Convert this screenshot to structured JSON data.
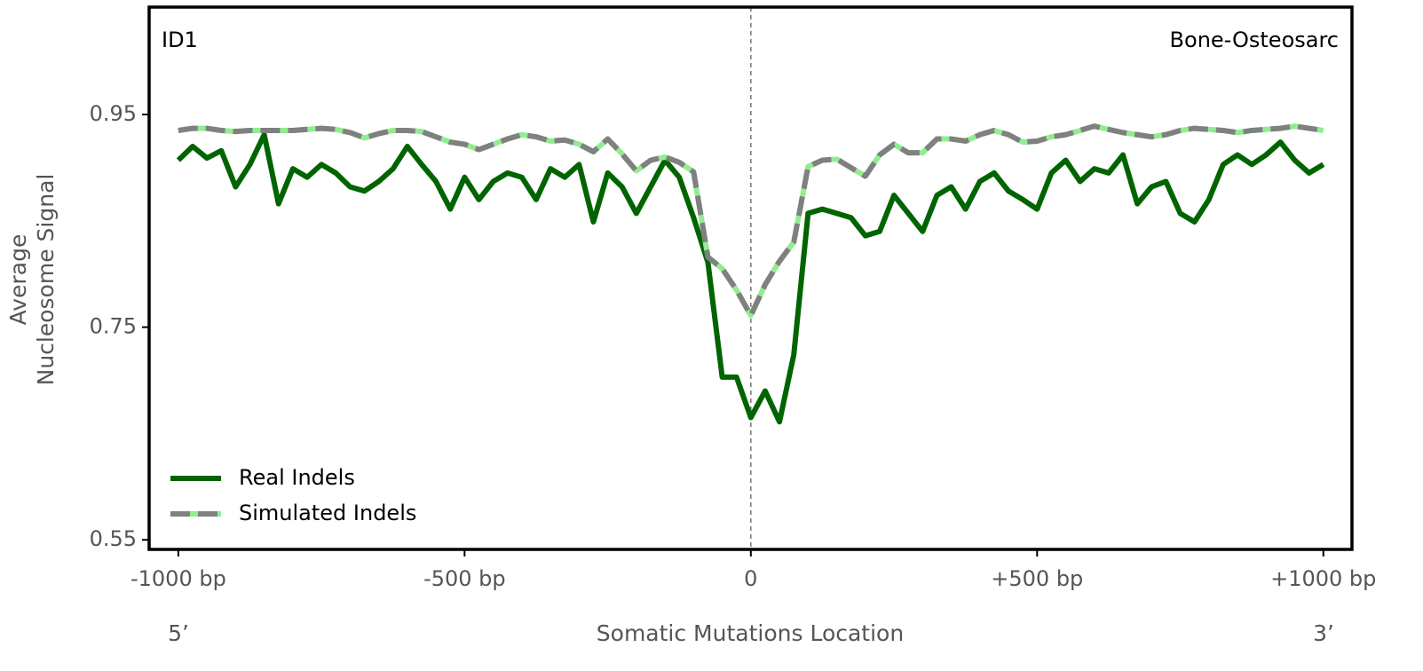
{
  "chart_data": {
    "type": "line",
    "annotations": {
      "left": "ID1",
      "right": "Bone-Osteosarc"
    },
    "xlabel": "Somatic Mutations Location",
    "xlabel_ends": [
      "5’",
      "3’"
    ],
    "ylabel": [
      "Average",
      "Nucleosome Signal"
    ],
    "xlim": [
      -1051,
      1050
    ],
    "ylim": [
      0.541,
      1.051
    ],
    "xticks": [
      {
        "value": -1000,
        "label": "-1000 bp"
      },
      {
        "value": -500,
        "label": "-500 bp"
      },
      0,
      {
        "value": 500,
        "label": "+500 bp"
      },
      {
        "value": 1000,
        "label": "+1000 bp"
      }
    ],
    "yticks": [
      0.55,
      0.75,
      0.95
    ],
    "grid": false,
    "vline": 0,
    "legend": "lower left",
    "x": [
      -1000,
      -975,
      -950,
      -925,
      -900,
      -875,
      -850,
      -825,
      -800,
      -775,
      -750,
      -725,
      -700,
      -675,
      -650,
      -625,
      -600,
      -575,
      -550,
      -525,
      -500,
      -475,
      -450,
      -425,
      -400,
      -375,
      -350,
      -325,
      -300,
      -275,
      -250,
      -225,
      -200,
      -175,
      -150,
      -125,
      -100,
      -75,
      -50,
      -25,
      0,
      25,
      50,
      75,
      100,
      125,
      150,
      175,
      200,
      225,
      250,
      275,
      300,
      325,
      350,
      375,
      400,
      425,
      450,
      475,
      500,
      525,
      550,
      575,
      600,
      625,
      650,
      675,
      700,
      725,
      750,
      775,
      800,
      825,
      850,
      875,
      900,
      925,
      950,
      975,
      1000
    ],
    "series": [
      {
        "name": "Real Indels",
        "color": "#006400",
        "dashed": false,
        "values": [
          0.907,
          0.92,
          0.909,
          0.916,
          0.882,
          0.903,
          0.931,
          0.866,
          0.899,
          0.891,
          0.903,
          0.895,
          0.882,
          0.878,
          0.887,
          0.899,
          0.92,
          0.903,
          0.887,
          0.861,
          0.891,
          0.87,
          0.887,
          0.895,
          0.891,
          0.87,
          0.899,
          0.891,
          0.903,
          0.849,
          0.895,
          0.882,
          0.857,
          0.882,
          0.907,
          0.891,
          0.853,
          0.811,
          0.703,
          0.703,
          0.665,
          0.69,
          0.661,
          0.724,
          0.857,
          0.861,
          0.857,
          0.853,
          0.836,
          0.84,
          0.874,
          0.857,
          0.84,
          0.874,
          0.882,
          0.861,
          0.887,
          0.895,
          0.878,
          0.87,
          0.861,
          0.895,
          0.907,
          0.887,
          0.899,
          0.895,
          0.912,
          0.866,
          0.882,
          0.887,
          0.857,
          0.849,
          0.87,
          0.903,
          0.912,
          0.903,
          0.912,
          0.924,
          0.907,
          0.895,
          0.903
        ]
      },
      {
        "name": "Simulated Indels",
        "color": "#808080",
        "dashed": true,
        "background_color": "#90ee90",
        "values": [
          0.935,
          0.937,
          0.937,
          0.935,
          0.934,
          0.935,
          0.935,
          0.935,
          0.935,
          0.936,
          0.937,
          0.936,
          0.933,
          0.928,
          0.932,
          0.935,
          0.935,
          0.934,
          0.929,
          0.924,
          0.922,
          0.917,
          0.922,
          0.927,
          0.931,
          0.929,
          0.925,
          0.926,
          0.922,
          0.915,
          0.927,
          0.913,
          0.897,
          0.907,
          0.91,
          0.905,
          0.896,
          0.816,
          0.805,
          0.785,
          0.761,
          0.79,
          0.812,
          0.83,
          0.901,
          0.907,
          0.908,
          0.9,
          0.892,
          0.912,
          0.922,
          0.914,
          0.914,
          0.927,
          0.927,
          0.925,
          0.931,
          0.935,
          0.931,
          0.924,
          0.925,
          0.929,
          0.931,
          0.935,
          0.939,
          0.936,
          0.933,
          0.931,
          0.929,
          0.931,
          0.935,
          0.937,
          0.936,
          0.935,
          0.933,
          0.935,
          0.936,
          0.937,
          0.939,
          0.937,
          0.935
        ]
      }
    ]
  }
}
